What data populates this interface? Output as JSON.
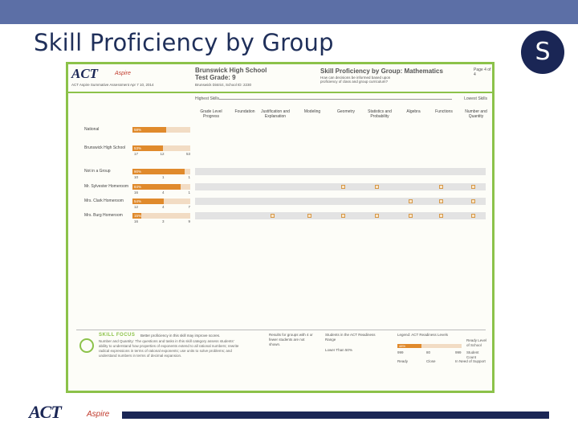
{
  "slide": {
    "title": "Skill Proficiency by Group",
    "badge": "S"
  },
  "report": {
    "logo": "ACT",
    "logo_sub": "Aspire",
    "logo_caption": "ACT Aspire Summative Assessment Apr 7 10, 2014",
    "school_name": "Brunswick High School",
    "grade": "Test Grade: 9",
    "district": "Brunswick District, School ID: 2230",
    "report_title": "Skill Proficiency by Group: Mathematics",
    "report_subtitle": "How can decisions be informed based upon proficiency of class and group curriculum?",
    "page": "Page 4 of 4",
    "highest_skills": "Highest Skills",
    "lowest_skills": "Lowest Skills",
    "columns": [
      "Grade Level Progress",
      "Foundation",
      "Justification and Explanation",
      "Modeling",
      "Geometry",
      "Statistics and Probability",
      "Algebra",
      "Functions",
      "Number and Quantity"
    ],
    "rows": [
      {
        "label": "National",
        "pct": "58%",
        "fill": 0.58,
        "counts": [
          "",
          "",
          ""
        ]
      },
      {
        "label": "Brunswick High School",
        "pct": "53%",
        "fill": 0.53,
        "counts": [
          "17",
          "12",
          "53"
        ]
      },
      {
        "label": "Not in a Group",
        "pct": "90%",
        "fill": 0.9,
        "counts": [
          "10",
          "1",
          "1"
        ]
      },
      {
        "label": "Mr. Sylvester Homeroom",
        "pct": "84%",
        "fill": 0.84,
        "counts": [
          "16",
          "4",
          "1"
        ]
      },
      {
        "label": "Mrs. Clark Homeroom",
        "pct": "54%",
        "fill": 0.54,
        "counts": [
          "12",
          "4",
          "7"
        ]
      },
      {
        "label": "Mrs. Burg Homeroom",
        "pct": "15%",
        "fill": 0.15,
        "counts": [
          "16",
          "3",
          "9"
        ]
      }
    ],
    "focus_title": "SKILL FOCUS",
    "focus_lead": "Better proficiency in this skill may improve scores.",
    "focus_text": "Number and Quantity: The questions and tasks in this skill category assess students' ability to understand how properties of exponents extend to all rational numbers; rewrite radical expressions in terms of rational exponents; use units to solve problems; and understand numbers in terms of decimal expansion.",
    "foot_note": "Results for groups with 4 or fewer students are not shown.",
    "foot_range": "Students in the ACT Readiness Range",
    "foot_range2": "Lower Than 50%",
    "legend_title": "Legend: ACT Readiness Levels",
    "legend_pct": "48%",
    "legend_counts": [
      "999",
      "80",
      "999"
    ],
    "legend_labels": [
      "Ready",
      "Close",
      "In Need of Support"
    ],
    "legend_ready": "Ready Level of School",
    "legend_student": "Student Count"
  },
  "footer": {
    "logo": "ACT",
    "logo_sub": "Aspire"
  },
  "colors": {
    "title": "#1f2f5a",
    "navy": "#1a2655",
    "top_bar": "#5c6fa6",
    "report_border": "#8cc24a",
    "bar_fill": "#e08a2c"
  }
}
